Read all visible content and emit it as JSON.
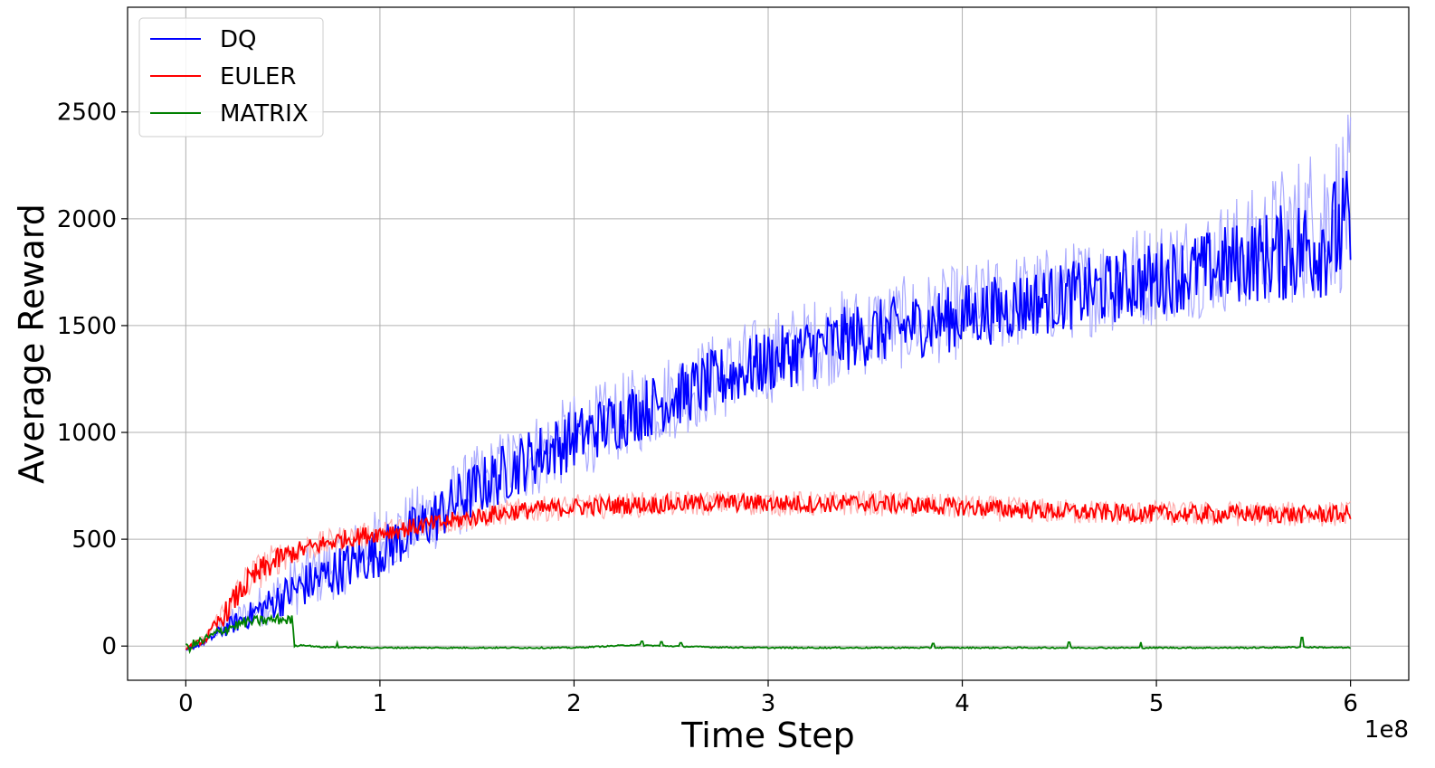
{
  "chart_data": {
    "type": "line",
    "title": "",
    "xlabel": "Time Step",
    "ylabel": "Average Reward",
    "x_offset_text": "1e8",
    "xlim": [
      -0.3,
      6.3
    ],
    "ylim": [
      -160,
      2990
    ],
    "x_ticks": [
      0,
      1,
      2,
      3,
      4,
      5,
      6
    ],
    "x_tick_labels": [
      "0",
      "1",
      "2",
      "3",
      "4",
      "5",
      "6"
    ],
    "y_ticks": [
      0,
      500,
      1000,
      1500,
      2000,
      2500
    ],
    "y_tick_labels": [
      "0",
      "500",
      "1000",
      "1500",
      "2000",
      "2500"
    ],
    "grid": true,
    "legend_position": "top-left",
    "series": [
      {
        "name": "DQ",
        "color": "#0000ff",
        "band_color": "#aaaaff",
        "x": [
          0,
          0.1,
          0.2,
          0.3,
          0.4,
          0.5,
          0.6,
          0.8,
          1.0,
          1.2,
          1.4,
          1.6,
          1.8,
          2.0,
          2.25,
          2.5,
          2.75,
          3.0,
          3.25,
          3.5,
          3.75,
          4.0,
          4.25,
          4.5,
          4.75,
          5.0,
          5.25,
          5.5,
          5.75,
          6.0
        ],
        "values": [
          -20,
          20,
          80,
          130,
          180,
          230,
          280,
          360,
          440,
          550,
          680,
          790,
          890,
          970,
          1070,
          1160,
          1250,
          1330,
          1400,
          1460,
          1500,
          1540,
          1590,
          1630,
          1670,
          1720,
          1760,
          1810,
          1860,
          1950
        ],
        "band_low": [
          -30,
          5,
          40,
          60,
          90,
          120,
          150,
          230,
          320,
          400,
          500,
          600,
          690,
          770,
          870,
          960,
          1050,
          1130,
          1200,
          1260,
          1300,
          1340,
          1380,
          1420,
          1460,
          1500,
          1540,
          1570,
          1600,
          1650
        ],
        "band_high": [
          -10,
          40,
          150,
          220,
          300,
          380,
          450,
          560,
          650,
          760,
          880,
          1000,
          1100,
          1180,
          1280,
          1380,
          1480,
          1560,
          1640,
          1700,
          1740,
          1790,
          1840,
          1880,
          1940,
          2000,
          2060,
          2150,
          2320,
          2500
        ]
      },
      {
        "name": "EULER",
        "color": "#ff0000",
        "band_color": "#ffaaaa",
        "x": [
          0,
          0.1,
          0.2,
          0.3,
          0.4,
          0.5,
          0.6,
          0.8,
          1.0,
          1.2,
          1.4,
          1.6,
          1.8,
          2.0,
          2.25,
          2.5,
          2.75,
          3.0,
          3.25,
          3.5,
          3.75,
          4.0,
          4.25,
          4.5,
          4.75,
          5.0,
          5.25,
          5.5,
          5.75,
          6.0
        ],
        "values": [
          -10,
          30,
          150,
          280,
          360,
          420,
          450,
          500,
          530,
          560,
          590,
          620,
          640,
          650,
          660,
          665,
          670,
          670,
          665,
          670,
          660,
          650,
          640,
          630,
          625,
          620,
          618,
          620,
          615,
          620
        ],
        "band_low": [
          -20,
          10,
          90,
          200,
          280,
          350,
          390,
          440,
          470,
          500,
          530,
          560,
          580,
          590,
          600,
          605,
          610,
          610,
          605,
          610,
          600,
          590,
          580,
          570,
          565,
          560,
          558,
          560,
          555,
          560
        ],
        "band_high": [
          0,
          60,
          240,
          380,
          460,
          500,
          520,
          560,
          590,
          620,
          650,
          680,
          700,
          710,
          720,
          725,
          730,
          730,
          725,
          730,
          720,
          710,
          700,
          690,
          685,
          680,
          678,
          680,
          675,
          680
        ]
      },
      {
        "name": "MATRIX",
        "color": "#008000",
        "band_color": "#8ccc8c",
        "x": [
          0,
          0.1,
          0.2,
          0.3,
          0.4,
          0.5,
          0.55,
          0.56,
          0.6,
          0.7,
          0.8,
          1.0,
          1.5,
          2.0,
          2.3,
          2.5,
          2.7,
          3.0,
          3.5,
          4.0,
          4.5,
          5.0,
          5.5,
          5.75,
          6.0
        ],
        "values": [
          -10,
          30,
          80,
          110,
          120,
          125,
          120,
          0,
          5,
          -5,
          -5,
          -8,
          -8,
          -8,
          5,
          0,
          -5,
          -8,
          -8,
          -8,
          -8,
          -8,
          -8,
          -5,
          -8
        ],
        "spikes": [
          [
            0.78,
            15
          ],
          [
            2.35,
            22
          ],
          [
            2.45,
            20
          ],
          [
            2.55,
            15
          ],
          [
            3.85,
            12
          ],
          [
            4.55,
            18
          ],
          [
            4.92,
            18
          ],
          [
            5.75,
            40
          ]
        ]
      }
    ]
  }
}
